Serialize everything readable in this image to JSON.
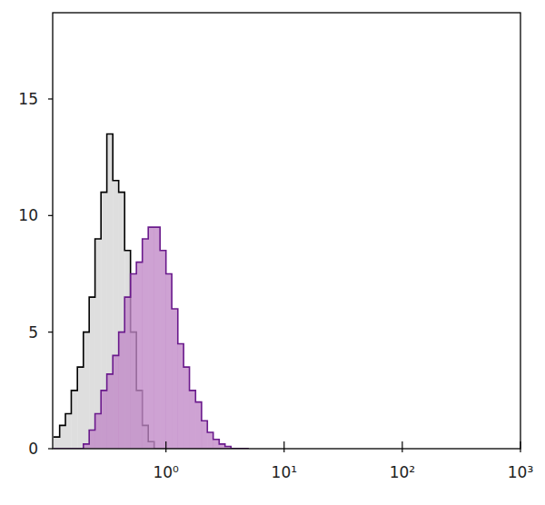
{
  "chart_data": {
    "type": "histogram",
    "log": "x",
    "bins": [
      0.112,
      0.126,
      0.141,
      0.158,
      0.178,
      0.2,
      0.224,
      0.251,
      0.282,
      0.316,
      0.355,
      0.398,
      0.447,
      0.501,
      0.562,
      0.631,
      0.708,
      0.794,
      0.891,
      1,
      1.12,
      1.26,
      1.41,
      1.58,
      1.78,
      2.0,
      2.24,
      2.51,
      2.82,
      3.16,
      3.55,
      3.98,
      4.47,
      5.01
    ],
    "series": [
      {
        "color": "#dedede",
        "values": [
          0.5,
          1.0,
          1.5,
          2.5,
          3.5,
          5,
          6.5,
          9,
          11,
          13.5,
          11.5,
          11,
          8.5,
          5,
          2.5,
          1,
          0.3,
          0,
          0,
          0,
          0,
          0,
          0,
          0,
          0,
          0,
          0,
          0,
          0,
          0,
          0,
          0,
          0
        ]
      },
      {
        "color": "#c088c6",
        "values": [
          0,
          0,
          0,
          0,
          0,
          0.2,
          0.8,
          1.5,
          2.5,
          3.2,
          4,
          5,
          6.5,
          7.5,
          8,
          9,
          9.5,
          9.5,
          8.5,
          7.5,
          6,
          4.5,
          3.5,
          2.5,
          2,
          1.2,
          0.7,
          0.4,
          0.2,
          0.1,
          0,
          0,
          0
        ]
      }
    ],
    "xlim": [
      0.11,
      1000
    ],
    "xticks": [
      {
        "value": 1,
        "label": "10⁰"
      },
      {
        "value": 10,
        "label": "10¹"
      },
      {
        "value": 100,
        "label": "10²"
      },
      {
        "value": 1000,
        "label": "10³"
      }
    ],
    "ylim": [
      0,
      18.7
    ],
    "yticks": [
      0,
      5,
      10,
      15
    ]
  }
}
